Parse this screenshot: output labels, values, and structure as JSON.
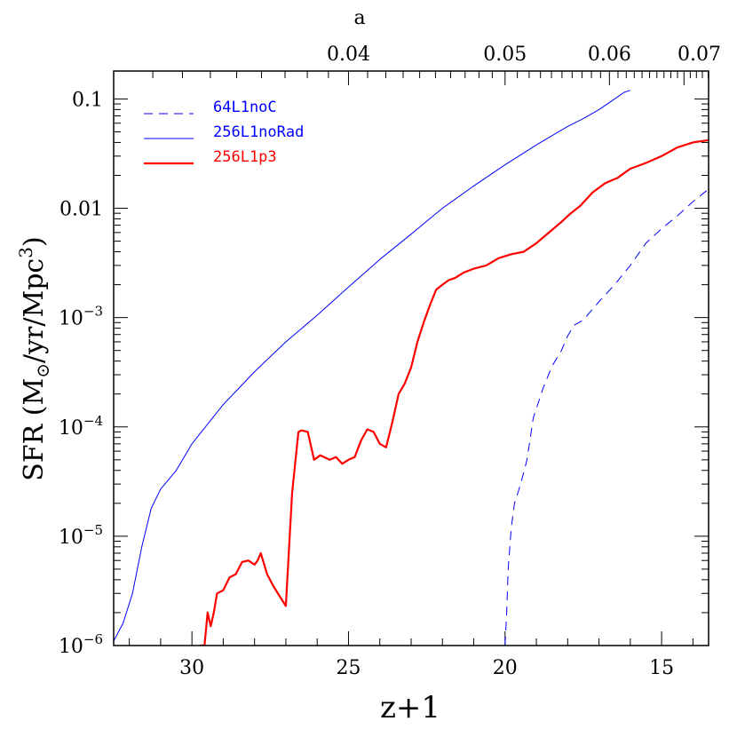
{
  "chart_data": {
    "type": "line",
    "xlabel": "z+1",
    "ylabel_main": "SFR (M",
    "ylabel_sub": "⊙",
    "ylabel_rest": "/yr/Mpc",
    "ylabel_sup": "3",
    "ylabel_close": ")",
    "top_label": "a",
    "xlim": [
      32.5,
      13.5
    ],
    "ylim": [
      1e-06,
      0.18
    ],
    "yscale": "log",
    "x_ticks": [
      {
        "value": 30,
        "label": "30"
      },
      {
        "value": 25,
        "label": "25"
      },
      {
        "value": 20,
        "label": "20"
      },
      {
        "value": 15,
        "label": "15"
      }
    ],
    "y_ticks": [
      {
        "value": 0.1,
        "base": "0.1",
        "exp": ""
      },
      {
        "value": 0.01,
        "base": "0.01",
        "exp": ""
      },
      {
        "value": 0.001,
        "base": "10",
        "exp": "−3"
      },
      {
        "value": 0.0001,
        "base": "10",
        "exp": "−4"
      },
      {
        "value": 1e-05,
        "base": "10",
        "exp": "−5"
      },
      {
        "value": 1e-06,
        "base": "10",
        "exp": "−6"
      }
    ],
    "top_ticks": [
      {
        "value": 0.04,
        "label": "0.04"
      },
      {
        "value": 0.05,
        "label": "0.05"
      },
      {
        "value": 0.06,
        "label": "0.06"
      },
      {
        "value": 0.07,
        "label": "0.07"
      }
    ],
    "legend_position": "top-left",
    "series": [
      {
        "name": "64L1noC",
        "color": "#0000ff",
        "style": "dashed",
        "width": 1,
        "x": [
          20.0,
          19.95,
          19.9,
          19.8,
          19.7,
          19.5,
          19.3,
          19.1,
          18.8,
          18.5,
          18.2,
          18.0,
          17.8,
          17.5,
          17.2,
          17.0,
          16.5,
          16.0,
          15.5,
          15.0,
          14.5,
          14.0,
          13.5
        ],
        "y": [
          1e-06,
          2e-06,
          5e-06,
          1.2e-05,
          2e-05,
          3e-05,
          5e-05,
          0.00012,
          0.00022,
          0.00036,
          0.0005,
          0.00068,
          0.00085,
          0.00095,
          0.0012,
          0.0014,
          0.002,
          0.003,
          0.0048,
          0.0065,
          0.0085,
          0.0115,
          0.015
        ]
      },
      {
        "name": "256L1noRad",
        "color": "#0000ff",
        "style": "solid",
        "width": 1,
        "x": [
          32.5,
          32.2,
          31.9,
          31.6,
          31.3,
          31.0,
          30.5,
          30.0,
          29.0,
          28.0,
          27.0,
          26.0,
          25.0,
          24.0,
          23.0,
          22.0,
          21.0,
          20.0,
          19.0,
          18.0,
          17.5,
          17.0,
          16.5,
          16.2,
          16.0
        ],
        "y": [
          1.1e-06,
          1.6e-06,
          3e-06,
          8e-06,
          1.8e-05,
          2.7e-05,
          4e-05,
          7e-05,
          0.00016,
          0.00032,
          0.0006,
          0.00105,
          0.0019,
          0.0034,
          0.0058,
          0.01,
          0.016,
          0.025,
          0.038,
          0.056,
          0.066,
          0.08,
          0.1,
          0.115,
          0.12
        ]
      },
      {
        "name": "256L1p3",
        "color": "#ff0000",
        "style": "solid",
        "width": 2.2,
        "x": [
          29.75,
          29.6,
          29.5,
          29.4,
          29.3,
          29.2,
          29.0,
          28.8,
          28.6,
          28.4,
          28.2,
          28.0,
          27.9,
          27.8,
          27.6,
          27.4,
          27.0,
          26.8,
          26.6,
          26.5,
          26.3,
          26.1,
          25.9,
          25.6,
          25.4,
          25.2,
          25.0,
          24.8,
          24.6,
          24.4,
          24.2,
          24.0,
          23.8,
          23.6,
          23.4,
          23.2,
          23.0,
          22.8,
          22.6,
          22.4,
          22.2,
          22.0,
          21.8,
          21.6,
          21.3,
          21.0,
          20.6,
          20.2,
          19.8,
          19.4,
          19.0,
          18.6,
          18.2,
          17.9,
          17.6,
          17.2,
          16.8,
          16.4,
          16.0,
          15.5,
          15.0,
          14.5,
          14.0,
          13.5
        ],
        "y": [
          1e-06,
          1e-06,
          2e-06,
          1.5e-06,
          2e-06,
          3e-06,
          3.2e-06,
          4.2e-06,
          4.5e-06,
          5.8e-06,
          6e-06,
          5.5e-06,
          6e-06,
          7e-06,
          4.5e-06,
          3.5e-06,
          2.3e-06,
          2.5e-05,
          9e-05,
          9.3e-05,
          9e-05,
          5e-05,
          5.5e-05,
          5e-05,
          5.3e-05,
          4.6e-05,
          5e-05,
          5.3e-05,
          7.5e-05,
          9.5e-05,
          9e-05,
          7e-05,
          6.5e-05,
          0.00011,
          0.0002,
          0.00025,
          0.00035,
          0.0006,
          0.0009,
          0.0013,
          0.0018,
          0.002,
          0.0022,
          0.0023,
          0.0026,
          0.0028,
          0.003,
          0.0035,
          0.0038,
          0.004,
          0.0048,
          0.006,
          0.0075,
          0.009,
          0.0105,
          0.014,
          0.017,
          0.019,
          0.023,
          0.026,
          0.03,
          0.036,
          0.04,
          0.042
        ]
      }
    ]
  }
}
